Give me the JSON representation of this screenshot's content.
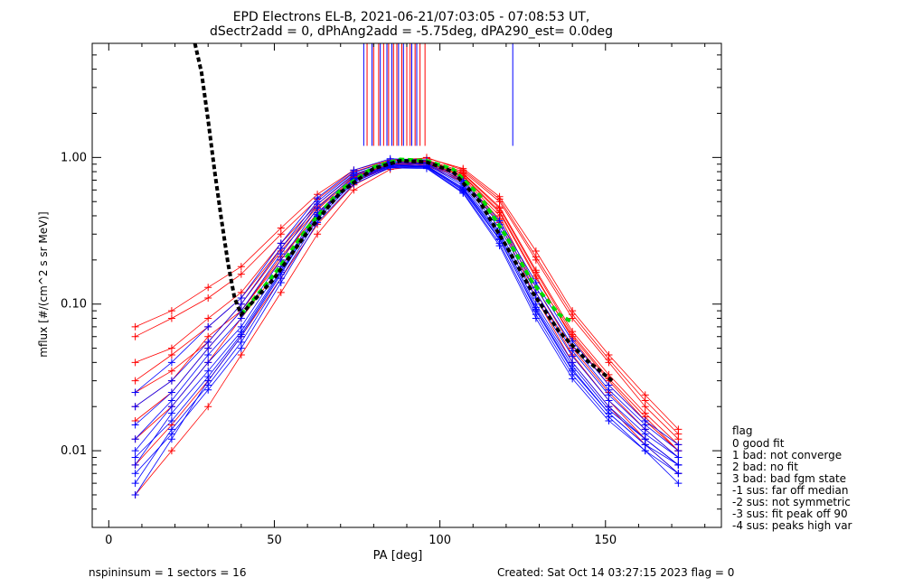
{
  "title_line1": "EPD Electrons EL-B, 2021-06-21/07:03:05 - 07:08:53 UT,",
  "title_line2": "dSectr2add = 0, dPhAng2add = -5.75deg, dPA290_est=   0.0deg",
  "footer": {
    "left": "nspininsum =  1  sectors = 16",
    "right": "Created: Sat Oct 14 03:27:15 2023   flag = 0"
  },
  "legend": {
    "heading": "flag",
    "items": [
      " 0 good fit",
      " 1 bad: not converge",
      " 2 bad: no fit",
      " 3 bad: bad fgm state",
      "-1 sus: far off median",
      "-2 sus: not symmetric",
      "-3 sus: fit peak off 90",
      "-4 sus: peaks high var"
    ]
  },
  "colors": {
    "red": "#ff0000",
    "blue": "#0000ff",
    "fit": "#00dd00",
    "model": "#000000"
  },
  "chart_data": {
    "type": "line",
    "xlabel": "PA [deg]",
    "ylabel": "mflux [#/(cm^2 s sr MeV)]",
    "xlim": [
      -5,
      185
    ],
    "ylim": [
      0.003,
      6.0
    ],
    "yscale": "log",
    "xticks": [
      0,
      50,
      100,
      150
    ],
    "xtick_labels": [
      "0",
      "50",
      "100",
      "150"
    ],
    "yticks": [
      0.01,
      0.1,
      1.0
    ],
    "ytick_labels": [
      "0.01",
      "0.10",
      "1.00"
    ],
    "pa_bins": [
      8,
      19,
      30,
      40,
      52,
      63,
      74,
      85,
      96,
      107,
      118,
      129,
      140,
      151,
      162,
      172
    ],
    "series": [
      {
        "color": "red",
        "values": [
          0.02,
          0.03,
          0.06,
          0.09,
          0.2,
          0.42,
          0.7,
          0.88,
          0.92,
          0.74,
          0.42,
          0.15,
          0.06,
          0.03,
          0.016,
          0.01
        ]
      },
      {
        "color": "red",
        "values": [
          0.06,
          0.08,
          0.11,
          0.16,
          0.3,
          0.52,
          0.8,
          0.95,
          0.96,
          0.8,
          0.5,
          0.2,
          0.08,
          0.04,
          0.02,
          0.012
        ]
      },
      {
        "color": "red",
        "values": [
          0.008,
          0.015,
          0.03,
          0.06,
          0.15,
          0.35,
          0.65,
          0.86,
          0.9,
          0.7,
          0.38,
          0.12,
          0.045,
          0.022,
          0.012,
          0.008
        ]
      },
      {
        "color": "red",
        "values": [
          0.04,
          0.05,
          0.08,
          0.12,
          0.26,
          0.48,
          0.76,
          0.92,
          0.95,
          0.78,
          0.46,
          0.17,
          0.065,
          0.033,
          0.018,
          0.011
        ]
      },
      {
        "color": "red",
        "values": [
          0.012,
          0.02,
          0.04,
          0.08,
          0.18,
          0.38,
          0.68,
          0.88,
          0.91,
          0.72,
          0.4,
          0.13,
          0.05,
          0.025,
          0.014,
          0.009
        ]
      },
      {
        "color": "red",
        "values": [
          0.03,
          0.045,
          0.07,
          0.11,
          0.24,
          0.46,
          0.74,
          0.91,
          1.0,
          0.82,
          0.52,
          0.21,
          0.085,
          0.042,
          0.022,
          0.013
        ]
      },
      {
        "color": "red",
        "values": [
          0.005,
          0.01,
          0.02,
          0.045,
          0.12,
          0.3,
          0.6,
          0.83,
          0.88,
          0.68,
          0.36,
          0.11,
          0.04,
          0.02,
          0.011,
          0.007
        ]
      },
      {
        "color": "red",
        "values": [
          0.07,
          0.09,
          0.13,
          0.18,
          0.33,
          0.56,
          0.82,
          0.96,
          0.99,
          0.84,
          0.54,
          0.23,
          0.09,
          0.045,
          0.024,
          0.014
        ]
      },
      {
        "color": "red",
        "values": [
          0.016,
          0.025,
          0.05,
          0.09,
          0.21,
          0.41,
          0.71,
          0.89,
          0.93,
          0.75,
          0.43,
          0.155,
          0.058,
          0.028,
          0.016,
          0.01
        ]
      },
      {
        "color": "red",
        "values": [
          0.025,
          0.035,
          0.055,
          0.1,
          0.23,
          0.44,
          0.73,
          0.9,
          0.94,
          0.77,
          0.45,
          0.165,
          0.062,
          0.031,
          0.017,
          0.01
        ]
      },
      {
        "color": "blue",
        "values": [
          0.01,
          0.02,
          0.04,
          0.07,
          0.18,
          0.42,
          0.72,
          0.9,
          0.88,
          0.62,
          0.3,
          0.1,
          0.04,
          0.02,
          0.012,
          0.008
        ]
      },
      {
        "color": "blue",
        "values": [
          0.005,
          0.012,
          0.03,
          0.06,
          0.16,
          0.4,
          0.7,
          0.87,
          0.86,
          0.6,
          0.28,
          0.09,
          0.035,
          0.018,
          0.011,
          0.007
        ]
      },
      {
        "color": "blue",
        "values": [
          0.015,
          0.025,
          0.05,
          0.09,
          0.22,
          0.48,
          0.77,
          0.93,
          0.91,
          0.66,
          0.33,
          0.12,
          0.048,
          0.024,
          0.014,
          0.009
        ]
      },
      {
        "color": "blue",
        "values": [
          0.008,
          0.018,
          0.035,
          0.065,
          0.17,
          0.41,
          0.71,
          0.89,
          0.87,
          0.61,
          0.29,
          0.095,
          0.038,
          0.019,
          0.012,
          0.008
        ]
      },
      {
        "color": "blue",
        "values": [
          0.012,
          0.022,
          0.045,
          0.08,
          0.2,
          0.45,
          0.75,
          0.92,
          0.9,
          0.64,
          0.31,
          0.11,
          0.044,
          0.022,
          0.013,
          0.009
        ]
      },
      {
        "color": "blue",
        "values": [
          0.006,
          0.014,
          0.028,
          0.055,
          0.15,
          0.38,
          0.68,
          0.86,
          0.85,
          0.58,
          0.26,
          0.085,
          0.033,
          0.017,
          0.01,
          0.007
        ]
      },
      {
        "color": "blue",
        "values": [
          0.02,
          0.03,
          0.055,
          0.1,
          0.24,
          0.5,
          0.79,
          0.95,
          0.93,
          0.68,
          0.35,
          0.13,
          0.052,
          0.026,
          0.015,
          0.01
        ]
      },
      {
        "color": "blue",
        "values": [
          0.009,
          0.016,
          0.032,
          0.062,
          0.165,
          0.395,
          0.695,
          0.88,
          0.865,
          0.595,
          0.275,
          0.092,
          0.036,
          0.018,
          0.011,
          0.008
        ]
      },
      {
        "color": "blue",
        "values": [
          0.025,
          0.04,
          0.07,
          0.11,
          0.26,
          0.53,
          0.82,
          0.98,
          0.96,
          0.7,
          0.37,
          0.14,
          0.056,
          0.028,
          0.016,
          0.011
        ]
      },
      {
        "color": "blue",
        "values": [
          0.007,
          0.013,
          0.026,
          0.05,
          0.14,
          0.36,
          0.66,
          0.85,
          0.84,
          0.57,
          0.25,
          0.08,
          0.031,
          0.016,
          0.01,
          0.006
        ]
      }
    ],
    "fit_curve": {
      "color": "fit",
      "x": [
        40,
        50,
        60,
        70,
        80,
        88,
        96,
        104,
        112,
        120,
        128,
        136,
        140
      ],
      "y": [
        0.085,
        0.16,
        0.33,
        0.6,
        0.86,
        0.97,
        0.95,
        0.83,
        0.55,
        0.29,
        0.14,
        0.085,
        0.075
      ]
    },
    "model_curve": {
      "color": "model",
      "x": [
        26,
        28,
        30,
        32,
        34,
        36,
        38,
        40,
        50,
        60,
        70,
        80,
        88,
        96,
        104,
        112,
        120,
        128,
        136,
        144,
        152
      ],
      "y": [
        6.0,
        3.8,
        1.8,
        0.8,
        0.38,
        0.19,
        0.11,
        0.085,
        0.15,
        0.31,
        0.58,
        0.84,
        0.95,
        0.93,
        0.8,
        0.5,
        0.25,
        0.12,
        0.065,
        0.042,
        0.03
      ]
    },
    "vertical_markers": {
      "y_range": [
        1.2,
        6.0
      ],
      "red_x": [
        78,
        80,
        81.5,
        83,
        84.5,
        86,
        87,
        88.5,
        90,
        91,
        92.5,
        94,
        95.5
      ],
      "blue_x": [
        77,
        79.5,
        82,
        84,
        85.5,
        87.5,
        89,
        91.5,
        93,
        122
      ]
    },
    "grid": false,
    "legend_placement": "bottom-right outside"
  }
}
